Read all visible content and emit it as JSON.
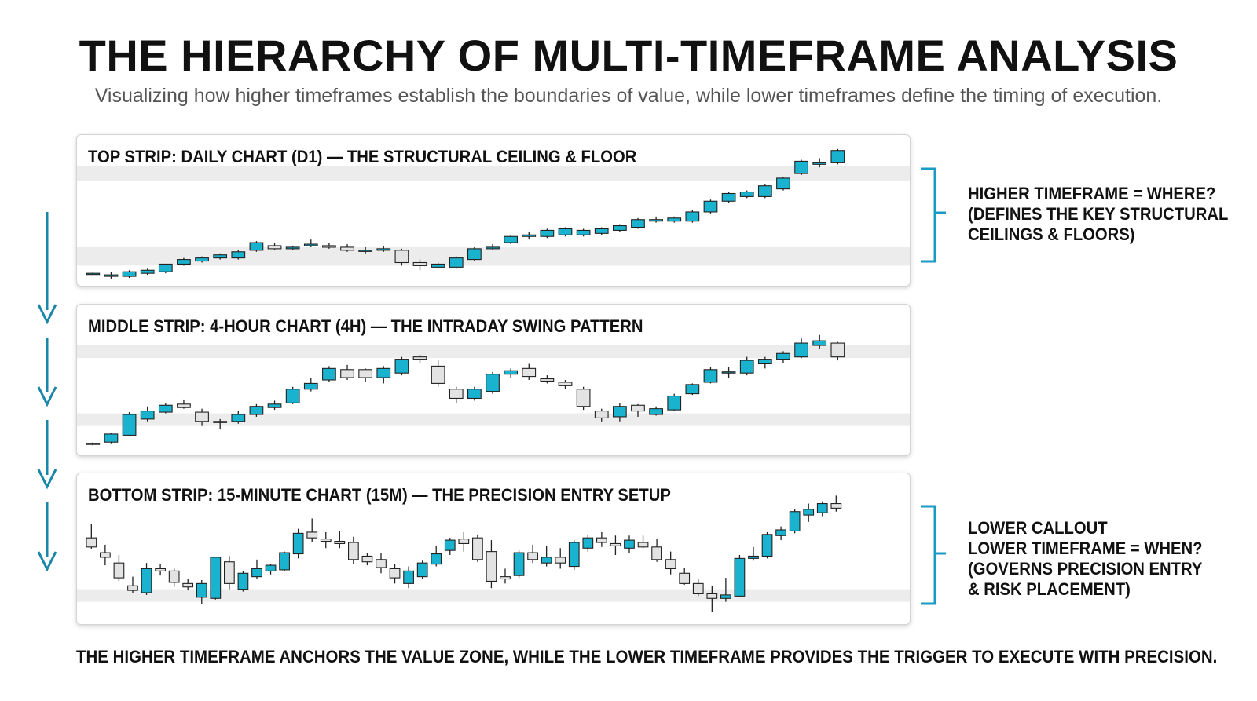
{
  "header": {
    "title": "THE HIERARCHY OF MULTI-TIMEFRAME ANALYSIS",
    "subtitle": "Visualizing how higher timeframes establish the boundaries of value, while lower timeframes define the timing of execution."
  },
  "strips": [
    {
      "label": "TOP STRIP: DAILY CHART (D1) — THE STRUCTURAL CEILING & FLOOR",
      "ohlc": [
        [
          130,
          131,
          129,
          130
        ],
        [
          128,
          131,
          126,
          129
        ],
        [
          128,
          132,
          127,
          131
        ],
        [
          130,
          133,
          129,
          132
        ],
        [
          131,
          136,
          130,
          136
        ],
        [
          136,
          140,
          135,
          139
        ],
        [
          138,
          141,
          137,
          140
        ],
        [
          140,
          143,
          139,
          142
        ],
        [
          140,
          145,
          139,
          144
        ],
        [
          145,
          151,
          144,
          150
        ],
        [
          148,
          150,
          145,
          146
        ],
        [
          146,
          148,
          145,
          147
        ],
        [
          148,
          152,
          147,
          149
        ],
        [
          148,
          150,
          146,
          147
        ],
        [
          147,
          149,
          144,
          145
        ],
        [
          145,
          147,
          143,
          145
        ],
        [
          145,
          148,
          144,
          146
        ],
        [
          145,
          146,
          135,
          137
        ],
        [
          137,
          139,
          132,
          135
        ],
        [
          134,
          137,
          133,
          136
        ],
        [
          134,
          141,
          133,
          140
        ],
        [
          139,
          147,
          138,
          146
        ],
        [
          146,
          149,
          145,
          147
        ],
        [
          150,
          155,
          149,
          154
        ],
        [
          154,
          157,
          152,
          155
        ],
        [
          154,
          159,
          153,
          158
        ],
        [
          155,
          160,
          154,
          159
        ],
        [
          155,
          159,
          154,
          158
        ],
        [
          156,
          160,
          155,
          159
        ],
        [
          158,
          162,
          157,
          161
        ],
        [
          160,
          166,
          159,
          165
        ],
        [
          164,
          167,
          163,
          165
        ],
        [
          164,
          167,
          163,
          166
        ],
        [
          164,
          171,
          163,
          170
        ],
        [
          170,
          178,
          169,
          177
        ],
        [
          177,
          183,
          176,
          182
        ],
        [
          180,
          184,
          179,
          183
        ],
        [
          180,
          188,
          179,
          187
        ],
        [
          185,
          193,
          184,
          192
        ],
        [
          195,
          204,
          194,
          203
        ],
        [
          201,
          205,
          199,
          202
        ],
        [
          202,
          211,
          201,
          210
        ]
      ],
      "bands": [
        [
          190,
          200
        ],
        [
          135,
          147
        ]
      ],
      "yrange": [
        126,
        216
      ]
    },
    {
      "label": "MIDDLE STRIP: 4-HOUR CHART (4H) — THE INTRADAY SWING PATTERN",
      "ohlc": [
        [
          102,
          104,
          101,
          103
        ],
        [
          104,
          112,
          103,
          111
        ],
        [
          110,
          130,
          109,
          128
        ],
        [
          124,
          135,
          122,
          131
        ],
        [
          130,
          138,
          129,
          136
        ],
        [
          137,
          141,
          133,
          134
        ],
        [
          130,
          133,
          118,
          122
        ],
        [
          121,
          124,
          115,
          122
        ],
        [
          122,
          131,
          120,
          128
        ],
        [
          128,
          137,
          126,
          135
        ],
        [
          134,
          140,
          132,
          137
        ],
        [
          138,
          152,
          137,
          150
        ],
        [
          150,
          160,
          148,
          155
        ],
        [
          158,
          170,
          156,
          168
        ],
        [
          167,
          171,
          158,
          160
        ],
        [
          167,
          168,
          156,
          160
        ],
        [
          160,
          170,
          155,
          168
        ],
        [
          164,
          178,
          162,
          176
        ],
        [
          178,
          180,
          173,
          176
        ],
        [
          170,
          175,
          152,
          155
        ],
        [
          150,
          152,
          138,
          142
        ],
        [
          142,
          152,
          140,
          150
        ],
        [
          148,
          165,
          146,
          163
        ],
        [
          163,
          168,
          160,
          166
        ],
        [
          168,
          172,
          158,
          161
        ],
        [
          159,
          162,
          155,
          157
        ],
        [
          156,
          158,
          150,
          153
        ],
        [
          150,
          152,
          132,
          135
        ],
        [
          131,
          133,
          122,
          125
        ],
        [
          126,
          138,
          122,
          135
        ],
        [
          136,
          137,
          126,
          131
        ],
        [
          128,
          135,
          127,
          133
        ],
        [
          132,
          146,
          131,
          144
        ],
        [
          146,
          155,
          145,
          154
        ],
        [
          156,
          169,
          155,
          167
        ],
        [
          164,
          169,
          160,
          165
        ],
        [
          164,
          178,
          162,
          175
        ],
        [
          172,
          178,
          168,
          176
        ],
        [
          176,
          183,
          173,
          181
        ],
        [
          178,
          194,
          177,
          190
        ],
        [
          188,
          197,
          185,
          192
        ],
        [
          190,
          191,
          175,
          178
        ]
      ],
      "bands": [
        [
          177,
          188
        ],
        [
          118,
          129
        ]
      ],
      "yrange": [
        98,
        218
      ]
    },
    {
      "label": "BOTTOM STRIP: 15-MINUTE CHART (15M) — THE PRECISION ENTRY SETUP",
      "ohlc": [
        [
          160,
          172,
          150,
          152
        ],
        [
          147,
          154,
          136,
          143
        ],
        [
          138,
          145,
          122,
          125
        ],
        [
          118,
          126,
          112,
          114
        ],
        [
          112,
          138,
          110,
          133
        ],
        [
          133,
          137,
          127,
          131
        ],
        [
          131,
          134,
          117,
          121
        ],
        [
          120,
          124,
          114,
          117
        ],
        [
          108,
          123,
          102,
          120
        ],
        [
          107,
          143,
          106,
          143
        ],
        [
          139,
          144,
          115,
          120
        ],
        [
          115,
          131,
          113,
          129
        ],
        [
          126,
          141,
          124,
          133
        ],
        [
          131,
          137,
          128,
          136
        ],
        [
          132,
          148,
          131,
          147
        ],
        [
          146,
          168,
          142,
          164
        ],
        [
          165,
          177,
          156,
          160
        ],
        [
          159,
          165,
          151,
          157
        ],
        [
          157,
          166,
          151,
          155
        ],
        [
          156,
          161,
          137,
          141
        ],
        [
          144,
          147,
          136,
          139
        ],
        [
          141,
          147,
          129,
          134
        ],
        [
          133,
          137,
          120,
          125
        ],
        [
          120,
          135,
          116,
          131
        ],
        [
          126,
          140,
          124,
          138
        ],
        [
          137,
          153,
          135,
          146
        ],
        [
          149,
          160,
          145,
          158
        ],
        [
          159,
          165,
          148,
          155
        ],
        [
          160,
          163,
          139,
          141
        ],
        [
          148,
          158,
          116,
          122
        ],
        [
          126,
          133,
          120,
          124
        ],
        [
          127,
          149,
          125,
          147
        ],
        [
          147,
          154,
          138,
          141
        ],
        [
          138,
          153,
          135,
          143
        ],
        [
          143,
          151,
          133,
          138
        ],
        [
          135,
          158,
          132,
          156
        ],
        [
          151,
          163,
          148,
          160
        ],
        [
          160,
          165,
          152,
          156
        ],
        [
          155,
          162,
          145,
          153
        ],
        [
          151,
          162,
          147,
          158
        ],
        [
          156,
          162,
          151,
          152
        ],
        [
          152,
          159,
          139,
          141
        ],
        [
          141,
          148,
          128,
          133
        ],
        [
          129,
          134,
          119,
          120
        ],
        [
          120,
          124,
          109,
          111
        ],
        [
          111,
          118,
          95,
          107
        ],
        [
          107,
          125,
          104,
          110
        ],
        [
          109,
          145,
          108,
          142
        ],
        [
          142,
          152,
          140,
          144
        ],
        [
          144,
          165,
          142,
          163
        ],
        [
          162,
          170,
          158,
          167
        ],
        [
          166,
          185,
          164,
          183
        ],
        [
          180,
          190,
          174,
          185
        ],
        [
          182,
          192,
          179,
          190
        ],
        [
          190,
          197,
          183,
          186
        ]
      ],
      "bands": [
        [
          104,
          115
        ]
      ],
      "yrange": [
        90,
        211
      ]
    }
  ],
  "callouts": {
    "higher": [
      "HIGHER TIMEFRAME = WHERE?",
      "(DEFINES THE KEY STRUCTURAL",
      "CEILINGS & FLOORS)"
    ],
    "lower": [
      "LOWER CALLOUT",
      "LOWER TIMEFRAME = WHEN?",
      "(GOVERNS PRECISION ENTRY",
      "& RISK PLACEMENT)"
    ]
  },
  "footer": "THE HIGHER TIMEFRAME ANCHORS THE VALUE ZONE, WHILE THE LOWER TIMEFRAME PROVIDES THE TRIGGER TO EXECUTE WITH PRECISION.",
  "colors": {
    "bull": "#1ab3cf",
    "bear": "#e3e3e3",
    "band": "#ececec",
    "arrow": "#1a86a8",
    "bracket": "#1a9bc4",
    "wick": "#222222"
  }
}
